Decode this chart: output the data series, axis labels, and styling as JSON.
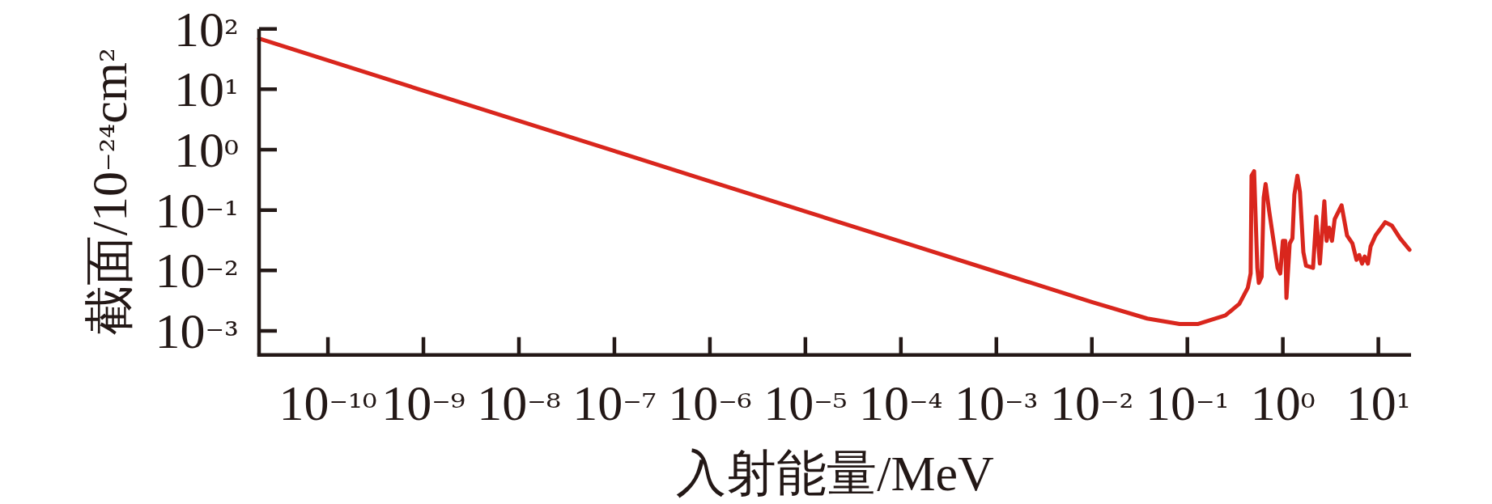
{
  "chart_data": {
    "type": "line",
    "xlabel": "入射能量/MeV",
    "ylabel": "截面/10⁻²⁴cm²",
    "log": "xy",
    "color": "#d9261d",
    "line_style": "solid",
    "xlim": [
      1.9e-11,
      22
    ],
    "ylim": [
      0.0004,
      100
    ],
    "xticks": [
      {
        "value": 1e-10,
        "label": "10⁻¹⁰"
      },
      {
        "value": 1e-09,
        "label": "10⁻⁹"
      },
      {
        "value": 1e-08,
        "label": "10⁻⁸"
      },
      {
        "value": 1e-07,
        "label": "10⁻⁷"
      },
      {
        "value": 1e-06,
        "label": "10⁻⁶"
      },
      {
        "value": 1e-05,
        "label": "10⁻⁵"
      },
      {
        "value": 0.0001,
        "label": "10⁻⁴"
      },
      {
        "value": 0.001,
        "label": "10⁻³"
      },
      {
        "value": 0.01,
        "label": "10⁻²"
      },
      {
        "value": 0.1,
        "label": "10⁻¹"
      },
      {
        "value": 1,
        "label": "10⁰"
      },
      {
        "value": 10,
        "label": "10¹"
      }
    ],
    "yticks": [
      {
        "value": 0.001,
        "label": "10⁻³"
      },
      {
        "value": 0.01,
        "label": "10⁻²"
      },
      {
        "value": 0.1,
        "label": "10⁻¹"
      },
      {
        "value": 1,
        "label": "10⁰"
      },
      {
        "value": 10,
        "label": "10¹"
      },
      {
        "value": 100,
        "label": "10²"
      }
    ],
    "x": [
      1.9e-11,
      1e-10,
      1e-09,
      1e-08,
      1e-07,
      1e-06,
      1e-05,
      0.0001,
      0.001,
      0.01,
      0.038,
      0.083,
      0.13,
      0.25,
      0.35,
      0.43,
      0.46,
      0.47,
      0.5,
      0.54,
      0.56,
      0.6,
      0.63,
      0.66,
      0.72,
      0.88,
      0.94,
      1.0,
      1.06,
      1.09,
      1.18,
      1.26,
      1.32,
      1.42,
      1.51,
      1.64,
      1.75,
      2.07,
      2.24,
      2.44,
      2.72,
      2.87,
      3.06,
      3.27,
      3.49,
      4.12,
      4.7,
      5.35,
      5.9,
      6.31,
      6.75,
      7.19,
      7.78,
      8.3,
      9.35,
      11.8,
      13.9,
      16.9,
      21.2
    ],
    "values": [
      69,
      30,
      9.5,
      3.0,
      0.95,
      0.3,
      0.095,
      0.03,
      0.0095,
      0.003,
      0.0016,
      0.0013,
      0.0013,
      0.0018,
      0.0028,
      0.0052,
      0.0089,
      0.37,
      0.44,
      0.011,
      0.0062,
      0.0079,
      0.16,
      0.27,
      0.095,
      0.011,
      0.0089,
      0.031,
      0.031,
      0.0035,
      0.028,
      0.034,
      0.18,
      0.37,
      0.2,
      0.02,
      0.012,
      0.011,
      0.078,
      0.013,
      0.14,
      0.031,
      0.051,
      0.031,
      0.071,
      0.12,
      0.038,
      0.028,
      0.015,
      0.018,
      0.013,
      0.017,
      0.013,
      0.025,
      0.038,
      0.063,
      0.055,
      0.034,
      0.022
    ]
  }
}
